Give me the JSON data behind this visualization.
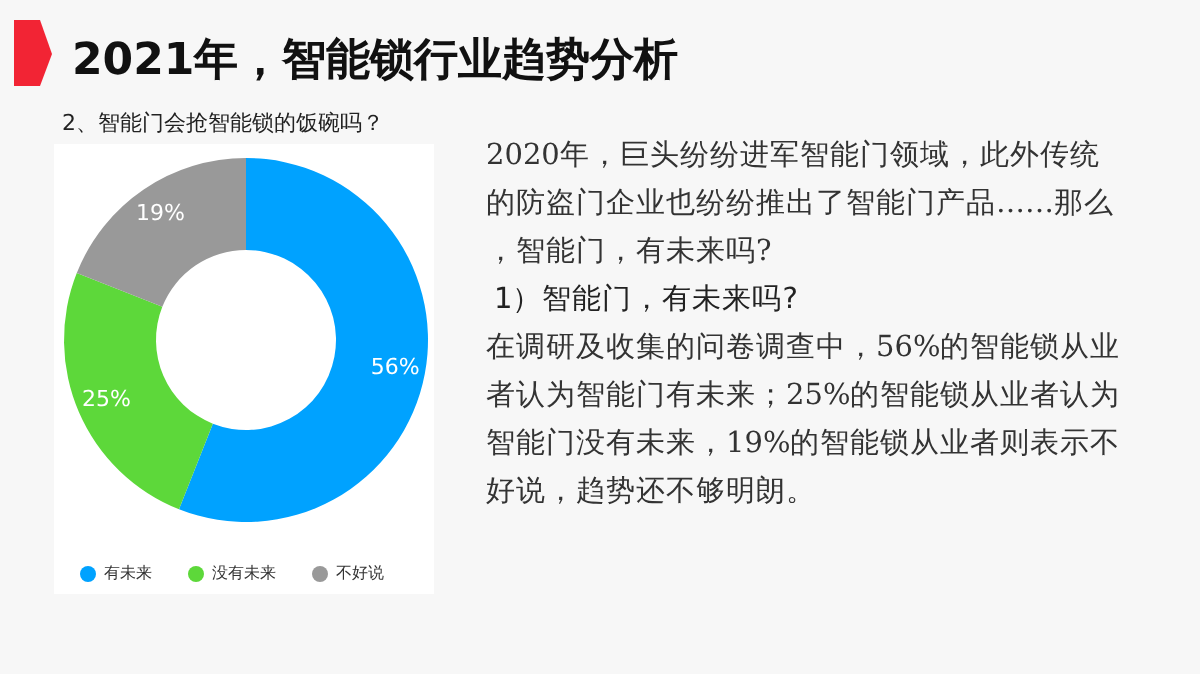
{
  "chart_data": {
    "type": "donut",
    "title": "2021年，智能锁行业趋势分析",
    "subtitle": "2、智能门会抢智能锁的饭碗吗？",
    "categories": [
      "有未来",
      "没有未来",
      "不好说"
    ],
    "values": [
      56,
      25,
      19
    ],
    "colors": [
      "#00a2ff",
      "#5dd83a",
      "#999999"
    ],
    "value_labels": [
      "56%",
      "25%",
      "19%"
    ],
    "legend": "bottom",
    "annotations": [
      "2020年，巨头纷纷进军智能门领域，此外传统的防盗门企业也纷纷推出了智能门产品……那么，智能门，有未来吗?",
      "1）智能门，有未来吗?",
      "在调研及收集的问卷调查中，56%的智能锁从业者认为智能门有未来；25%的智能锁从业者认为智能门没有未来，19%的智能锁从业者则表示不好说，趋势还不够明朗。"
    ]
  }
}
